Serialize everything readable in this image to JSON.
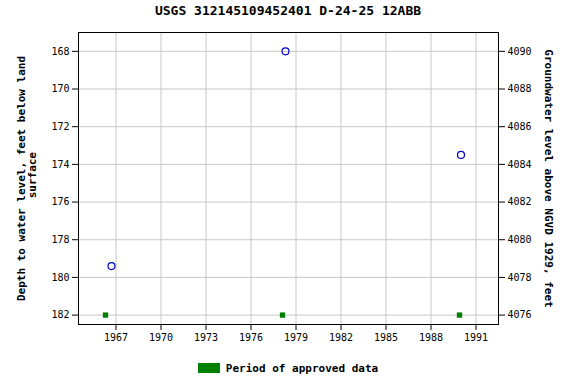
{
  "chart_data": {
    "type": "scatter",
    "title": "USGS 312145109452401 D-24-25 12ABB",
    "y_label": "Depth to water level, feet below land\n surface",
    "y2_label": "Groundwater level above NGVD 1929, feet",
    "series": [
      {
        "x": [
          1966.7,
          1978.3,
          1990.0
        ],
        "values": [
          179.4,
          168.0,
          173.5
        ],
        "color": "#0000cc",
        "marker": "open_circle"
      },
      {
        "name": "Period of approved data",
        "x": [
          1966.3,
          1978.1,
          1989.9
        ],
        "values": [
          182.0,
          182.0,
          182.0
        ],
        "color": "#008000",
        "marker": "square"
      }
    ],
    "xlim": [
      1964.5,
      1992.5
    ],
    "xticks": [
      1967,
      1970,
      1973,
      1976,
      1979,
      1982,
      1985,
      1988,
      1991
    ],
    "ylim": [
      182.5,
      167.0
    ],
    "yticks": [
      168,
      170,
      172,
      174,
      176,
      178,
      180,
      182
    ],
    "y2lim": [
      4075.5,
      4091.0
    ],
    "y2ticks": [
      4076,
      4078,
      4080,
      4082,
      4084,
      4086,
      4088,
      4090
    ],
    "grid": true,
    "legend": "bottom"
  }
}
